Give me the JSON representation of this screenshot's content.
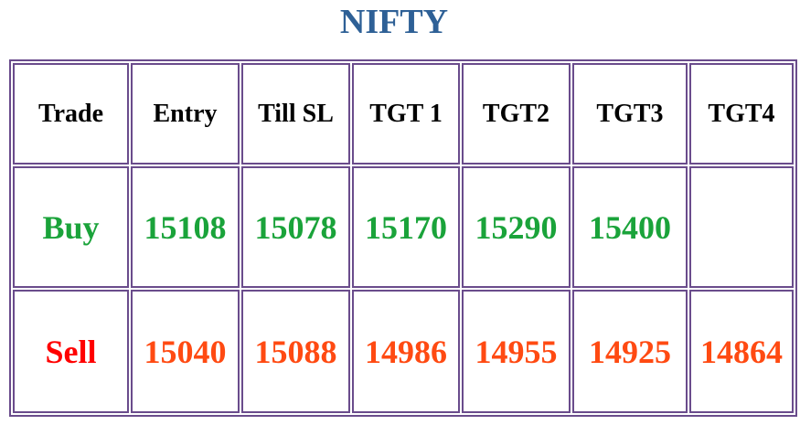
{
  "header": {
    "title": "NIFTY"
  },
  "table": {
    "columns": [
      "Trade",
      "Entry",
      "Till SL",
      "TGT 1",
      "TGT2",
      "TGT3",
      "TGT4"
    ],
    "rows": [
      [
        "Buy",
        "15108",
        "15078",
        "15170",
        "15290",
        "15400"
      ],
      [
        "Sell",
        "15040",
        "15088",
        "14986",
        "14955",
        "14925",
        "14864"
      ]
    ]
  }
}
